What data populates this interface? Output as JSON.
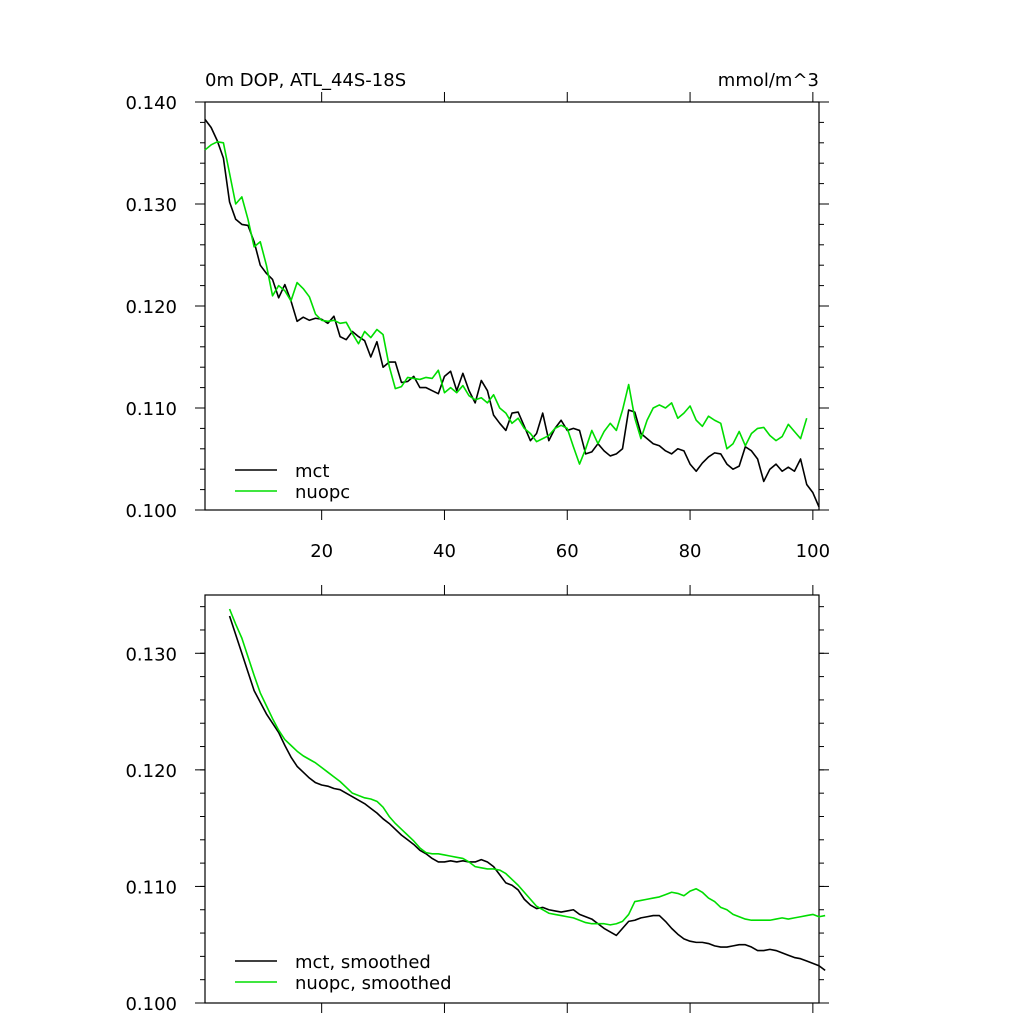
{
  "colors": {
    "mct": "#000000",
    "nuopc": "#00dd00"
  },
  "chart_data": [
    {
      "type": "line",
      "title": "0m DOP, ATL_44S-18S",
      "units": "mmol/m^3",
      "xlabel": "",
      "ylabel": "",
      "xlim": [
        1,
        101
      ],
      "ylim": [
        0.1,
        0.14
      ],
      "x_ticks": [
        "20",
        "40",
        "60",
        "80",
        "100"
      ],
      "y_ticks": [
        "0.100",
        "0.110",
        "0.120",
        "0.130",
        "0.140"
      ],
      "legend_position": "bottom-left",
      "x_start": 1,
      "series": [
        {
          "name": "mct",
          "color": "#000000",
          "values": [
            0.1383,
            0.1375,
            0.1362,
            0.1345,
            0.1302,
            0.1285,
            0.128,
            0.1279,
            0.1263,
            0.124,
            0.1232,
            0.1226,
            0.1208,
            0.1221,
            0.1205,
            0.1185,
            0.1189,
            0.1186,
            0.1188,
            0.1187,
            0.1183,
            0.119,
            0.117,
            0.1167,
            0.1175,
            0.117,
            0.1166,
            0.115,
            0.1165,
            0.114,
            0.1145,
            0.1145,
            0.1125,
            0.1126,
            0.1131,
            0.112,
            0.112,
            0.1117,
            0.1114,
            0.1131,
            0.1136,
            0.1117,
            0.1134,
            0.1117,
            0.1105,
            0.1127,
            0.1117,
            0.1093,
            0.1085,
            0.1078,
            0.1095,
            0.1096,
            0.1082,
            0.1068,
            0.1075,
            0.1095,
            0.1068,
            0.108,
            0.1088,
            0.1078,
            0.108,
            0.1078,
            0.1055,
            0.1057,
            0.1065,
            0.1058,
            0.1053,
            0.1055,
            0.106,
            0.1098,
            0.1096,
            0.1075,
            0.107,
            0.1065,
            0.1063,
            0.1058,
            0.1055,
            0.106,
            0.1058,
            0.1045,
            0.1038,
            0.1046,
            0.1052,
            0.1056,
            0.1055,
            0.1045,
            0.104,
            0.1043,
            0.1062,
            0.1058,
            0.105,
            0.1028,
            0.104,
            0.1045,
            0.1038,
            0.1042,
            0.1038,
            0.105,
            0.1025,
            0.1017,
            0.1003
          ]
        },
        {
          "name": "nuopc",
          "color": "#00dd00",
          "values": [
            0.1353,
            0.1358,
            0.1361,
            0.136,
            0.133,
            0.13,
            0.1307,
            0.1285,
            0.1258,
            0.1263,
            0.124,
            0.121,
            0.122,
            0.1215,
            0.1205,
            0.1223,
            0.1217,
            0.1209,
            0.1192,
            0.1186,
            0.1185,
            0.1186,
            0.1183,
            0.1184,
            0.1173,
            0.1163,
            0.1175,
            0.1169,
            0.1177,
            0.1172,
            0.1141,
            0.1119,
            0.1121,
            0.113,
            0.1129,
            0.1128,
            0.113,
            0.1129,
            0.1137,
            0.1115,
            0.112,
            0.1115,
            0.1122,
            0.1112,
            0.1108,
            0.111,
            0.1105,
            0.1113,
            0.11,
            0.1095,
            0.1085,
            0.109,
            0.108,
            0.1075,
            0.1067,
            0.107,
            0.1073,
            0.108,
            0.1083,
            0.108,
            0.1062,
            0.1045,
            0.106,
            0.1078,
            0.1065,
            0.1077,
            0.1085,
            0.1078,
            0.1098,
            0.1123,
            0.109,
            0.107,
            0.1088,
            0.11,
            0.1103,
            0.11,
            0.1105,
            0.109,
            0.1095,
            0.1102,
            0.1088,
            0.1082,
            0.1092,
            0.1088,
            0.1085,
            0.106,
            0.1065,
            0.1077,
            0.1063,
            0.1075,
            0.108,
            0.1081,
            0.1073,
            0.1068,
            0.1072,
            0.1084,
            0.1077,
            0.107,
            0.109
          ]
        }
      ],
      "legend": [
        "mct",
        "nuopc"
      ]
    },
    {
      "type": "line",
      "title": "",
      "xlabel": "",
      "ylabel": "",
      "xlim": [
        1,
        101
      ],
      "ylim": [
        0.1,
        0.135
      ],
      "y_ticks": [
        "0.100",
        "0.110",
        "0.120",
        "0.130"
      ],
      "legend_position": "bottom-left",
      "x_start": 5,
      "series": [
        {
          "name": "mct, smoothed",
          "color": "#000000",
          "values": [
            0.1332,
            0.1316,
            0.13,
            0.1284,
            0.1268,
            0.1258,
            0.1248,
            0.124,
            0.1232,
            0.1221,
            0.1211,
            0.1203,
            0.1198,
            0.1193,
            0.1189,
            0.1187,
            0.1186,
            0.1184,
            0.1183,
            0.118,
            0.1177,
            0.1174,
            0.1171,
            0.1167,
            0.1163,
            0.1158,
            0.1154,
            0.1149,
            0.1144,
            0.114,
            0.1136,
            0.1131,
            0.1128,
            0.1124,
            0.1121,
            0.1121,
            0.1122,
            0.1121,
            0.1122,
            0.1121,
            0.1121,
            0.1123,
            0.1121,
            0.1117,
            0.111,
            0.1103,
            0.1101,
            0.1097,
            0.1089,
            0.1084,
            0.1081,
            0.1082,
            0.108,
            0.1079,
            0.1078,
            0.1079,
            0.108,
            0.1076,
            0.1074,
            0.1072,
            0.1068,
            0.1064,
            0.1061,
            0.1058,
            0.1064,
            0.107,
            0.1071,
            0.1073,
            0.1074,
            0.1075,
            0.1075,
            0.107,
            0.1064,
            0.1059,
            0.1055,
            0.1053,
            0.1052,
            0.1052,
            0.1051,
            0.1049,
            0.1048,
            0.1048,
            0.1049,
            0.105,
            0.105,
            0.1048,
            0.1045,
            0.1045,
            0.1046,
            0.1045,
            0.1043,
            0.1041,
            0.1039,
            0.1038,
            0.1036,
            0.1034,
            0.1032,
            0.1028
          ]
        },
        {
          "name": "nuopc, smoothed",
          "color": "#00dd00",
          "values": [
            0.1338,
            0.1325,
            0.1313,
            0.1297,
            0.1281,
            0.1266,
            0.1255,
            0.1244,
            0.1234,
            0.1226,
            0.1221,
            0.1216,
            0.1212,
            0.1209,
            0.1206,
            0.1202,
            0.1198,
            0.1194,
            0.119,
            0.1185,
            0.118,
            0.1178,
            0.1176,
            0.1175,
            0.1173,
            0.1168,
            0.116,
            0.1154,
            0.1149,
            0.1144,
            0.1139,
            0.1133,
            0.1129,
            0.1128,
            0.1128,
            0.1127,
            0.1126,
            0.1125,
            0.1124,
            0.1121,
            0.1117,
            0.1116,
            0.1115,
            0.1115,
            0.1114,
            0.1111,
            0.1106,
            0.1101,
            0.1095,
            0.1089,
            0.1083,
            0.108,
            0.1077,
            0.1076,
            0.1075,
            0.1074,
            0.1073,
            0.1071,
            0.1069,
            0.1068,
            0.1068,
            0.1068,
            0.1067,
            0.1068,
            0.107,
            0.1076,
            0.1087,
            0.1088,
            0.1089,
            0.109,
            0.1091,
            0.1093,
            0.1095,
            0.1094,
            0.1092,
            0.1096,
            0.1098,
            0.1095,
            0.109,
            0.1087,
            0.1082,
            0.108,
            0.1076,
            0.1074,
            0.1072,
            0.1071,
            0.1071,
            0.1071,
            0.1071,
            0.1072,
            0.1073,
            0.1072,
            0.1073,
            0.1074,
            0.1075,
            0.1076,
            0.1074,
            0.1075
          ]
        }
      ],
      "legend": [
        "mct, smoothed",
        "nuopc, smoothed"
      ]
    }
  ]
}
